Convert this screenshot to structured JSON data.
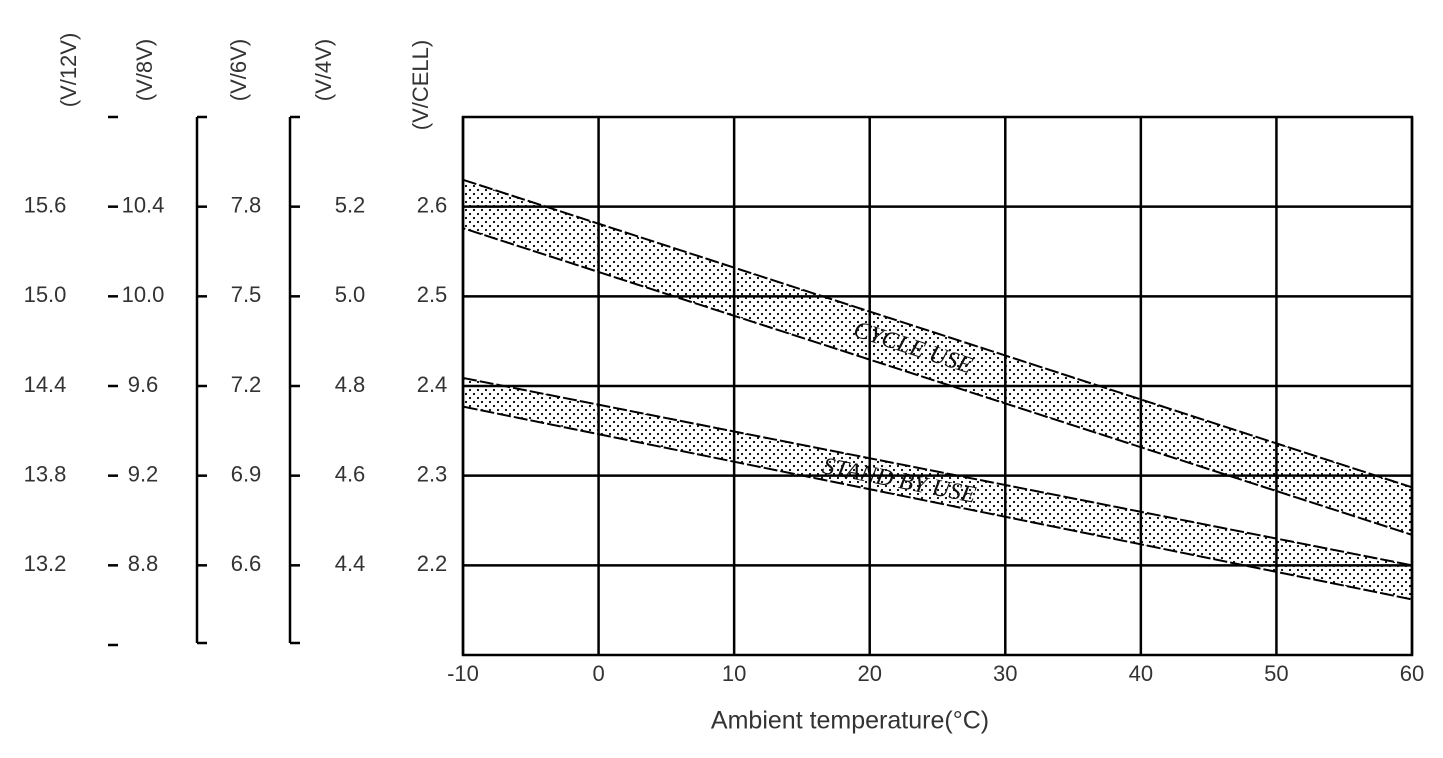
{
  "chart_data": {
    "type": "band",
    "x_label": "Ambient temperature(°C)",
    "xlim": [
      -10,
      60
    ],
    "xticks": [
      -10,
      0,
      10,
      20,
      30,
      40,
      50,
      60
    ],
    "y_label": "(V/CELL)",
    "ylim": [
      2.1,
      2.7
    ],
    "yticks": [
      2.2,
      2.3,
      2.4,
      2.5,
      2.6
    ],
    "grid": true,
    "extra_axes": [
      {
        "label": "(V/12V)",
        "ylim": [
          12.6,
          16.2
        ],
        "yticks": [
          13.2,
          13.8,
          14.4,
          {
            "value": 15,
            "label": "15.0"
          },
          15.6
        ]
      },
      {
        "label": "(V/8V)",
        "ylim": [
          8.4,
          10.8
        ],
        "yticks": [
          8.8,
          9.2,
          9.6,
          {
            "value": 10,
            "label": "10.0"
          },
          10.4
        ]
      },
      {
        "label": "(V/6V)",
        "ylim": [
          6.3,
          8.1
        ],
        "yticks": [
          6.6,
          6.9,
          7.2,
          7.5,
          7.8
        ]
      },
      {
        "label": "(V/4V)",
        "ylim": [
          4.2,
          5.4
        ],
        "yticks": [
          4.4,
          4.6,
          4.8,
          {
            "value": 5,
            "label": "5.0"
          },
          5.2
        ]
      }
    ],
    "series": [
      {
        "name": "CYCLE USE",
        "color": "#000000",
        "x": [
          -10,
          60
        ],
        "high": [
          2.63,
          2.287
        ],
        "low": [
          2.576,
          2.234
        ]
      },
      {
        "name": "STAND BY USE",
        "color": "#000000",
        "x": [
          -10,
          60
        ],
        "high": [
          2.409,
          2.2
        ],
        "low": [
          2.377,
          2.162
        ]
      }
    ]
  }
}
